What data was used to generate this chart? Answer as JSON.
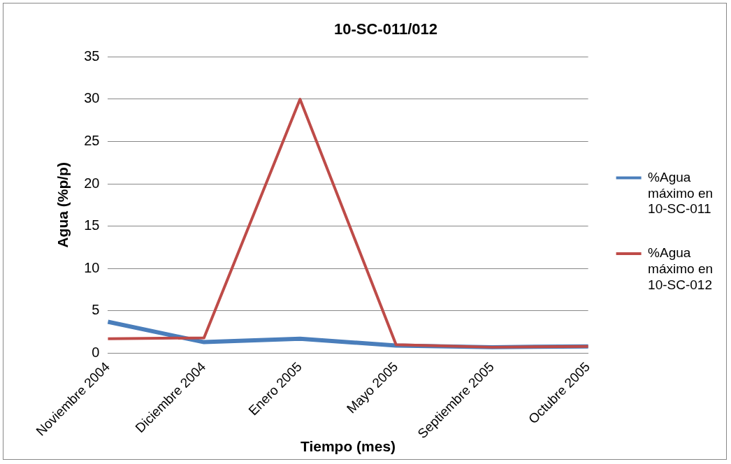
{
  "chart_data": {
    "type": "line",
    "title": "10-SC-011/012",
    "xlabel": "Tiempo (mes)",
    "ylabel": "Agua (%p/p)",
    "categories": [
      "Noviembre 2004",
      "Diciembre 2004",
      "Enero 2005",
      "Mayo 2005",
      "Septiembre 2005",
      "Octubre 2005"
    ],
    "series": [
      {
        "name": "%Agua máximo en 10-SC-011",
        "color": "#4a7ebb",
        "values": [
          3.7,
          1.3,
          1.7,
          0.9,
          0.7,
          0.8
        ]
      },
      {
        "name": "%Agua máximo en 10-SC-012",
        "color": "#be4b48",
        "values": [
          1.7,
          1.8,
          30,
          1.0,
          0.7,
          0.8
        ]
      }
    ],
    "ylim": [
      0,
      35
    ],
    "yticks": [
      0,
      5,
      10,
      15,
      20,
      25,
      30,
      35
    ],
    "grid": "y",
    "legend": "right",
    "marker": "none"
  }
}
